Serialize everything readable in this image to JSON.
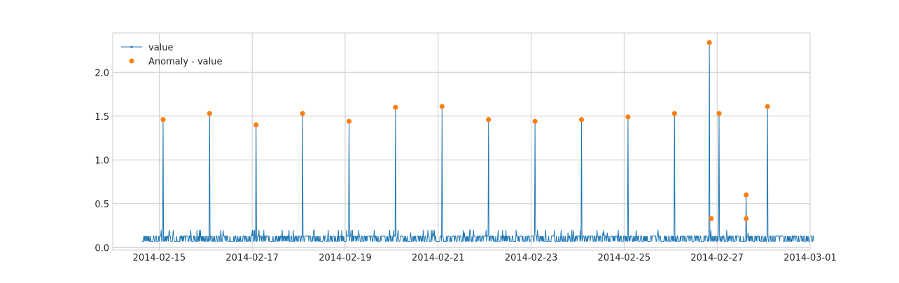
{
  "chart_data": {
    "type": "line",
    "title": "",
    "xlabel": "",
    "ylabel": "",
    "grid": true,
    "legend_position": "top-left",
    "colors": {
      "value": "#1f77b4",
      "anomaly": "#ff7f0e"
    },
    "xlim": [
      "2014-02-14T00:00",
      "2014-03-01T00:00"
    ],
    "ylim": [
      -0.03,
      2.45
    ],
    "x_ticks": [
      "2014-02-15",
      "2014-02-17",
      "2014-02-19",
      "2014-02-21",
      "2014-02-23",
      "2014-02-25",
      "2014-02-27",
      "2014-03-01"
    ],
    "y_ticks": [
      "0.0",
      "0.5",
      "1.0",
      "1.5",
      "2.0"
    ],
    "series": [
      {
        "name": "value",
        "style": "line-with-small-markers",
        "baseline_range": [
          0.07,
          0.13
        ],
        "x_range": [
          "2014-02-14T15:00",
          "2014-02-29T02:00"
        ],
        "peaks": [
          {
            "x": "2014-02-15T02:00",
            "y": 1.46
          },
          {
            "x": "2014-02-16T02:00",
            "y": 1.53
          },
          {
            "x": "2014-02-17T02:00",
            "y": 1.4
          },
          {
            "x": "2014-02-18T02:00",
            "y": 1.53
          },
          {
            "x": "2014-02-19T02:00",
            "y": 1.44
          },
          {
            "x": "2014-02-20T02:00",
            "y": 1.6
          },
          {
            "x": "2014-02-21T02:00",
            "y": 1.61
          },
          {
            "x": "2014-02-22T02:00",
            "y": 1.46
          },
          {
            "x": "2014-02-23T02:00",
            "y": 1.44
          },
          {
            "x": "2014-02-24T02:00",
            "y": 1.46
          },
          {
            "x": "2014-02-25T02:00",
            "y": 1.49
          },
          {
            "x": "2014-02-26T02:00",
            "y": 1.53
          },
          {
            "x": "2014-02-26T20:00",
            "y": 2.34
          },
          {
            "x": "2014-02-27T01:00",
            "y": 1.53
          },
          {
            "x": "2014-02-27T15:00",
            "y": 0.6
          },
          {
            "x": "2014-02-28T02:00",
            "y": 1.61
          }
        ]
      },
      {
        "name": "Anomaly - value",
        "style": "scatter",
        "points": [
          {
            "x": "2014-02-15T02:00",
            "y": 1.46
          },
          {
            "x": "2014-02-16T02:00",
            "y": 1.53
          },
          {
            "x": "2014-02-17T02:00",
            "y": 1.4
          },
          {
            "x": "2014-02-18T02:00",
            "y": 1.53
          },
          {
            "x": "2014-02-19T02:00",
            "y": 1.44
          },
          {
            "x": "2014-02-20T02:00",
            "y": 1.6
          },
          {
            "x": "2014-02-21T02:00",
            "y": 1.61
          },
          {
            "x": "2014-02-22T02:00",
            "y": 1.46
          },
          {
            "x": "2014-02-23T02:00",
            "y": 1.44
          },
          {
            "x": "2014-02-24T02:00",
            "y": 1.46
          },
          {
            "x": "2014-02-25T02:00",
            "y": 1.49
          },
          {
            "x": "2014-02-26T02:00",
            "y": 1.53
          },
          {
            "x": "2014-02-26T20:00",
            "y": 2.34
          },
          {
            "x": "2014-02-26T21:00",
            "y": 0.33
          },
          {
            "x": "2014-02-27T01:00",
            "y": 1.53
          },
          {
            "x": "2014-02-27T15:00",
            "y": 0.6
          },
          {
            "x": "2014-02-27T15:00",
            "y": 0.33
          },
          {
            "x": "2014-02-28T02:00",
            "y": 1.61
          }
        ]
      }
    ]
  }
}
